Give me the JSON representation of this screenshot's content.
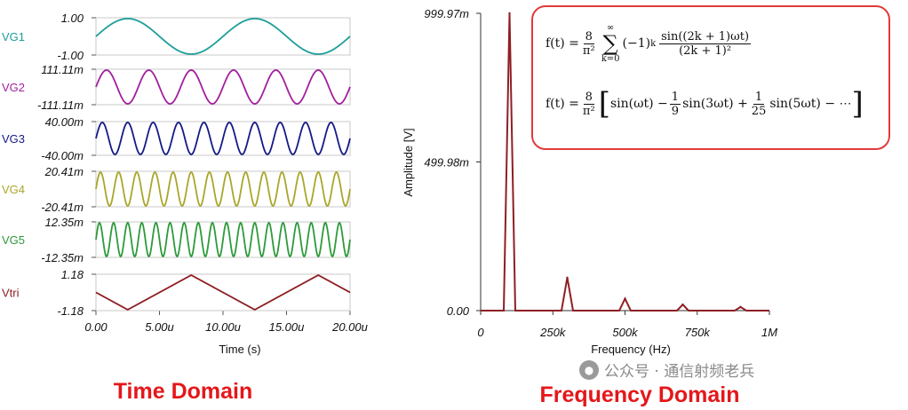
{
  "captions": {
    "time": "Time Domain",
    "freq": "Frequency Domain"
  },
  "watermark": "公众号 · 通信射频老兵",
  "icons": {
    "watermark": "wechat-icon"
  },
  "formulas": {
    "f1": {
      "lhs": "f(t) =",
      "coef_num": "8",
      "coef_den": "π²",
      "sum_top": "∞",
      "sum_bottom": "k=0",
      "sign": "(−1)",
      "sign_exp": "k",
      "term_num": "sin((2k + 1)ωt)",
      "term_den": "(2k + 1)²"
    },
    "f2": {
      "lhs": "f(t) =",
      "coef_num": "8",
      "coef_den": "π²",
      "open": "[",
      "t1": "sin(ωt) −",
      "c3_num": "1",
      "c3_den": "9",
      "t3": "sin(3ωt) +",
      "c5_num": "1",
      "c5_den": "25",
      "t5": "sin(5ωt) − ⋯",
      "close": "]"
    }
  },
  "chart_data": [
    {
      "type": "line",
      "title": "Time Domain",
      "xlabel": "Time (s)",
      "x_ticks": [
        "0.00",
        "5.00u",
        "10.00u",
        "15.00u",
        "20.00u"
      ],
      "xlim": [
        0,
        20
      ],
      "x_unit": "us",
      "series": [
        {
          "name": "VG1",
          "wave": "sine",
          "period": 10,
          "phase": 0,
          "amplitude": 1.0,
          "ymax_label": "1.00",
          "ymin_label": "-1.00",
          "color": "#1d9e9a"
        },
        {
          "name": "VG2",
          "wave": "sine",
          "period": 3.333,
          "phase": 0,
          "amplitude": 0.11111,
          "ymax_label": "111.11m",
          "ymin_label": "-111.11m",
          "color": "#a21f9e"
        },
        {
          "name": "VG3",
          "wave": "sine",
          "period": 2.0,
          "phase": 0,
          "amplitude": 0.04,
          "ymax_label": "40.00m",
          "ymin_label": "-40.00m",
          "color": "#141a86"
        },
        {
          "name": "VG4",
          "wave": "sine",
          "period": 1.4286,
          "phase": 0,
          "amplitude": 0.02041,
          "ymax_label": "20.41m",
          "ymin_label": "-20.41m",
          "color": "#a9a62a"
        },
        {
          "name": "VG5",
          "wave": "sine",
          "period": 1.1111,
          "phase": 0,
          "amplitude": 0.01235,
          "ymax_label": "12.35m",
          "ymin_label": "-12.35m",
          "color": "#2d9a3a"
        },
        {
          "name": "Vtri",
          "wave": "triangle",
          "period": 10,
          "phase": -0.25,
          "amplitude": 1.18,
          "ymax_label": "1.18",
          "ymin_label": "-1.18",
          "color": "#8e1f24"
        }
      ]
    },
    {
      "type": "line",
      "title": "Frequency Domain",
      "xlabel": "Frequency (Hz)",
      "ylabel": "Amplitude [V]",
      "xlim": [
        0,
        1000000
      ],
      "ylim": [
        0,
        0.99997
      ],
      "x_ticks": [
        {
          "value": 0,
          "label": "0"
        },
        {
          "value": 250000,
          "label": "250k"
        },
        {
          "value": 500000,
          "label": "500k"
        },
        {
          "value": 750000,
          "label": "750k"
        },
        {
          "value": 1000000,
          "label": "1M"
        }
      ],
      "y_ticks": [
        {
          "value": 0,
          "label": "0.00"
        },
        {
          "value": 0.49998,
          "label": "499.98m"
        },
        {
          "value": 0.99997,
          "label": "999.97m"
        }
      ],
      "peak_halfwidth_hz": 20000,
      "series": [
        {
          "name": "Amplitude",
          "color": "#8e1f24",
          "peaks": [
            {
              "freq": 100000,
              "amp": 0.99997
            },
            {
              "freq": 300000,
              "amp": 0.111
            },
            {
              "freq": 500000,
              "amp": 0.04
            },
            {
              "freq": 700000,
              "amp": 0.0204
            },
            {
              "freq": 900000,
              "amp": 0.0123
            }
          ]
        }
      ]
    }
  ]
}
